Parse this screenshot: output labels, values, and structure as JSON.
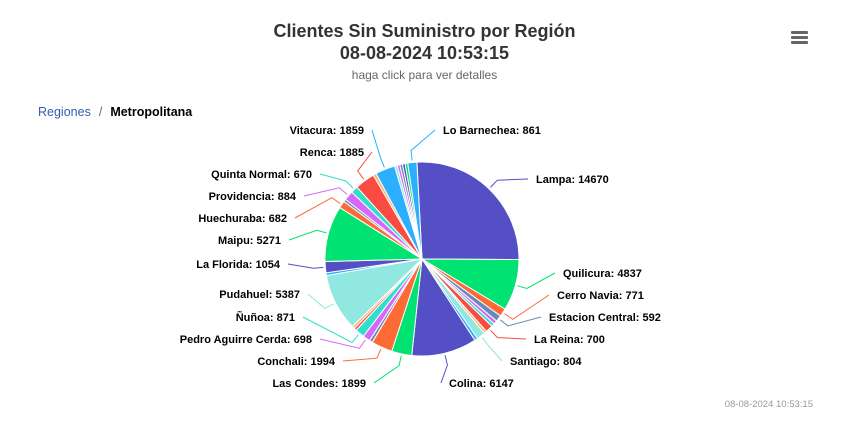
{
  "header": {
    "title_line1": "Clientes Sin Suministro por Región",
    "title_line2": "08-08-2024 10:53:15",
    "subtitle": "haga click para ver detalles"
  },
  "breadcrumb": {
    "parent": "Regiones",
    "separator": "/",
    "current": "Metropolitana"
  },
  "menu": {
    "icon": "hamburger-menu-icon"
  },
  "credits": "08-08-2024 10:53:15",
  "chart_data": {
    "type": "pie",
    "title": "Clientes Sin Suministro por Región",
    "subtitle": "haga click para ver detalles",
    "series": [
      {
        "name": "Lampa",
        "value": 14670,
        "color": "#544fc5"
      },
      {
        "name": "Quilicura",
        "value": 4837,
        "color": "#00e272"
      },
      {
        "name": "Cerro Navia",
        "value": 771,
        "color": "#fe6a35"
      },
      {
        "name": "Estacion Central",
        "value": 592,
        "color": "#6b8abc"
      },
      {
        "name": "unlabeled-1",
        "value": 350,
        "color": "#d568fb",
        "labeled": false
      },
      {
        "name": "unlabeled-2",
        "value": 300,
        "color": "#2ee0ca",
        "labeled": false
      },
      {
        "name": "La Reina",
        "value": 700,
        "color": "#fa4b42"
      },
      {
        "name": "unlabeled-3",
        "value": 250,
        "color": "#feb56a",
        "labeled": false
      },
      {
        "name": "Santiago",
        "value": 804,
        "color": "#91e8e1"
      },
      {
        "name": "unlabeled-4",
        "value": 300,
        "color": "#2caffe",
        "labeled": false
      },
      {
        "name": "Colina",
        "value": 6147,
        "color": "#544fc5"
      },
      {
        "name": "Las Condes",
        "value": 1899,
        "color": "#00e272"
      },
      {
        "name": "Conchali",
        "value": 1994,
        "color": "#fe6a35"
      },
      {
        "name": "unlabeled-5",
        "value": 300,
        "color": "#6b8abc",
        "labeled": false
      },
      {
        "name": "Pedro Aguirre Cerda",
        "value": 698,
        "color": "#d568fb"
      },
      {
        "name": "Ñuñoa",
        "value": 871,
        "color": "#2ee0ca"
      },
      {
        "name": "unlabeled-6",
        "value": 250,
        "color": "#fa4b42",
        "labeled": false
      },
      {
        "name": "unlabeled-7",
        "value": 250,
        "color": "#feb56a",
        "labeled": false
      },
      {
        "name": "Pudahuel",
        "value": 5387,
        "color": "#91e8e1"
      },
      {
        "name": "unlabeled-8",
        "value": 250,
        "color": "#2caffe",
        "labeled": false
      },
      {
        "name": "La Florida",
        "value": 1054,
        "color": "#544fc5"
      },
      {
        "name": "Maipu",
        "value": 5271,
        "color": "#00e272"
      },
      {
        "name": "Huechuraba",
        "value": 682,
        "color": "#fe6a35"
      },
      {
        "name": "unlabeled-9",
        "value": 250,
        "color": "#6b8abc",
        "labeled": false
      },
      {
        "name": "Providencia",
        "value": 884,
        "color": "#d568fb"
      },
      {
        "name": "Quinta Normal",
        "value": 670,
        "color": "#2ee0ca"
      },
      {
        "name": "Renca",
        "value": 1885,
        "color": "#fa4b42"
      },
      {
        "name": "unlabeled-10",
        "value": 300,
        "color": "#feb56a",
        "labeled": false
      },
      {
        "name": "Vitacura",
        "value": 1859,
        "color": "#2caffe"
      },
      {
        "name": "unlabeled-11",
        "value": 250,
        "color": "#91e8e1",
        "labeled": false
      },
      {
        "name": "unlabeled-12",
        "value": 250,
        "color": "#d568fb",
        "labeled": false
      },
      {
        "name": "unlabeled-13",
        "value": 250,
        "color": "#6b8abc",
        "labeled": false
      },
      {
        "name": "unlabeled-14",
        "value": 250,
        "color": "#544fc5",
        "labeled": false
      },
      {
        "name": "unlabeled-15",
        "value": 250,
        "color": "#00e272",
        "labeled": false
      },
      {
        "name": "Lo Barnechea",
        "value": 861,
        "color": "#2caffe"
      }
    ]
  }
}
